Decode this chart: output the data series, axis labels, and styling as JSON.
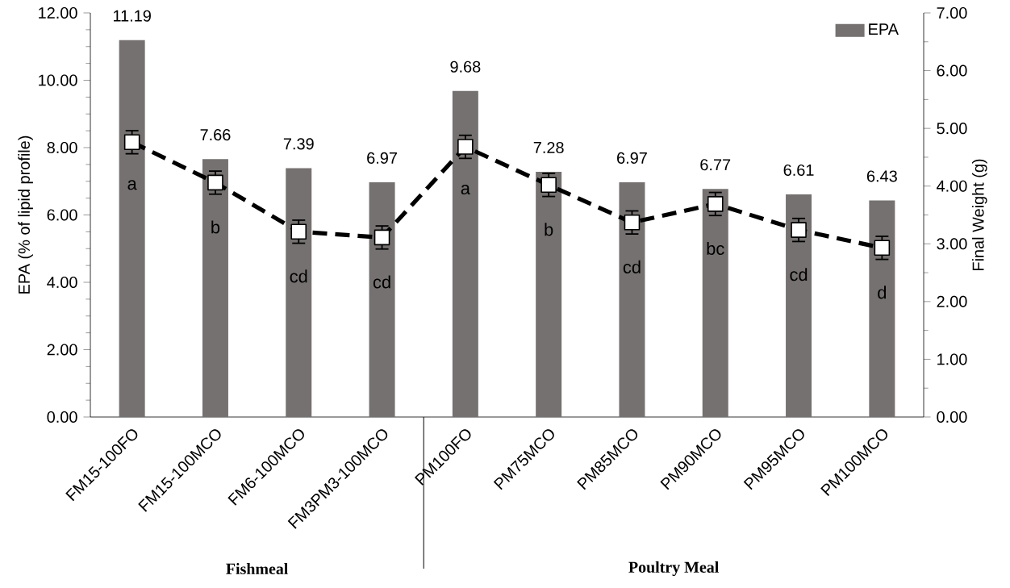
{
  "chart_data": {
    "type": "bar",
    "categories": [
      "FM15-100FO",
      "FM15-100MCO",
      "FM6-100MCO",
      "FM3PM3-100MCO",
      "PM100FO",
      "PM75MCO",
      "PM85MCO",
      "PM90MCO",
      "PM95MCO",
      "PM100MCO"
    ],
    "series": [
      {
        "name": "EPA",
        "color": "#767171",
        "values": [
          11.19,
          7.66,
          7.39,
          6.97,
          9.68,
          7.28,
          6.97,
          6.77,
          6.61,
          6.43
        ],
        "value_labels": [
          "11.19",
          "7.66",
          "7.39",
          "6.97",
          "9.68",
          "7.28",
          "6.97",
          "6.77",
          "6.61",
          "6.43"
        ]
      },
      {
        "type": "line",
        "axis": "y2",
        "color": "#000000",
        "marker": "square",
        "line_style": "dashed",
        "values": [
          4.76,
          4.06,
          3.21,
          3.11,
          4.68,
          4.02,
          3.37,
          3.69,
          3.24,
          2.93
        ],
        "errors": [
          0.2,
          0.2,
          0.2,
          0.2,
          0.2,
          0.2,
          0.2,
          0.2,
          0.2,
          0.2
        ],
        "value_labels": [
          "a",
          "b",
          "cd",
          "cd",
          "a",
          "b",
          "cd",
          "bc",
          "cd",
          "d"
        ]
      }
    ],
    "ylabel": "EPA (% of lipid profile)",
    "y2label": "Final Weight (g)",
    "ylim": [
      0,
      12
    ],
    "yticks": [
      {
        "value": 0,
        "label": "0.00"
      },
      {
        "value": 2,
        "label": "2.00"
      },
      {
        "value": 4,
        "label": "4.00"
      },
      {
        "value": 6,
        "label": "6.00"
      },
      {
        "value": 8,
        "label": "8.00"
      },
      {
        "value": 10,
        "label": "10.00"
      },
      {
        "value": 12,
        "label": "12.00"
      }
    ],
    "y2lim": [
      0,
      7
    ],
    "y2ticks": [
      {
        "value": 0,
        "label": "0.00"
      },
      {
        "value": 1,
        "label": "1.00"
      },
      {
        "value": 2,
        "label": "2.00"
      },
      {
        "value": 3,
        "label": "3.00"
      },
      {
        "value": 4,
        "label": "4.00"
      },
      {
        "value": 5,
        "label": "5.00"
      },
      {
        "value": 6,
        "label": "6.00"
      },
      {
        "value": 7,
        "label": "7.00"
      }
    ],
    "annotations": [
      "Fishmeal",
      "Poultry Meal"
    ],
    "legend": "top right",
    "grid": false
  }
}
